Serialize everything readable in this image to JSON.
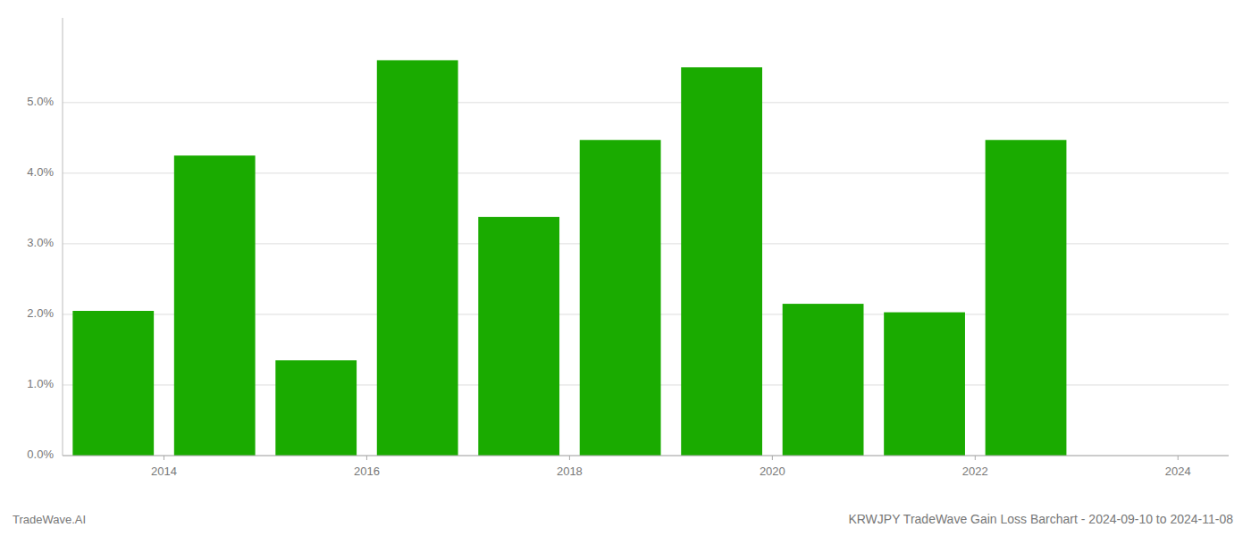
{
  "chart_data": {
    "type": "bar",
    "title": "KRWJPY TradeWave Gain Loss Barchart - 2024-09-10 to 2024-11-08",
    "annotations": [
      "TradeWave.AI"
    ],
    "x": [
      2013.5,
      2014.5,
      2015.5,
      2016.5,
      2017.5,
      2018.5,
      2019.5,
      2020.5,
      2021.5,
      2022.5
    ],
    "values": [
      0.0205,
      0.0425,
      0.0135,
      0.056,
      0.0338,
      0.0447,
      0.055,
      0.0215,
      0.0203,
      0.0447
    ],
    "color": "#1aab00",
    "xlim": [
      2013.0,
      2024.5
    ],
    "xticks": [
      2014,
      2016,
      2018,
      2020,
      2022,
      2024
    ],
    "ylim": [
      0.0,
      0.062
    ],
    "yticks": [
      {
        "value": 0.0,
        "label": "0.0%"
      },
      {
        "value": 0.01,
        "label": "1.0%"
      },
      {
        "value": 0.02,
        "label": "2.0%"
      },
      {
        "value": 0.03,
        "label": "3.0%"
      },
      {
        "value": 0.04,
        "label": "4.0%"
      },
      {
        "value": 0.05,
        "label": "5.0%"
      }
    ],
    "grid": true
  }
}
